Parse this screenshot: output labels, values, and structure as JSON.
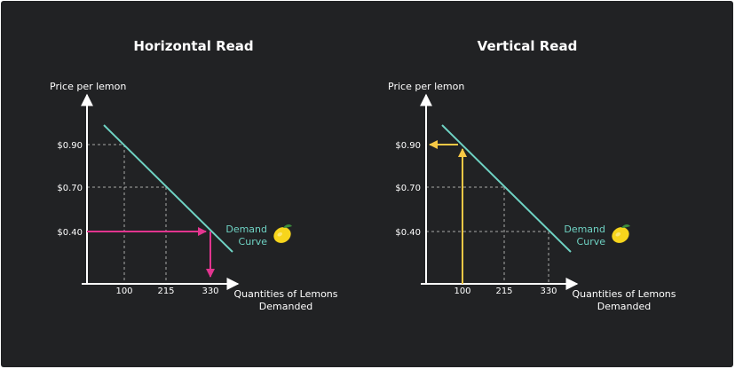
{
  "colors": {
    "background": "#212224",
    "axis": "#ffffff",
    "text": "#ffffff",
    "curve": "#6fd3c4",
    "grid": "#a9a9a9",
    "horizontal_arrow": "#e2358f",
    "vertical_arrow": "#f7c845",
    "lemon": "#f7d51c",
    "leaf": "#3c8c3c"
  },
  "icons": [
    "lemon-icon"
  ],
  "chart_data": [
    {
      "type": "line",
      "title": "Horizontal Read",
      "ylabel": "Price per lemon",
      "xlabel": "Quantities of Lemons Demanded",
      "xlabel_lines": [
        "Quantities of Lemons",
        "Demanded"
      ],
      "x_ticks": [
        "100",
        "215",
        "330"
      ],
      "y_ticks": [
        "$0.90",
        "$0.70",
        "$0.40"
      ],
      "series": [
        {
          "name": "Demand Curve",
          "label_lines": [
            "Demand",
            "Curve"
          ],
          "x": [
            100,
            215,
            330
          ],
          "y": [
            0.9,
            0.7,
            0.4
          ]
        }
      ],
      "guides": [
        {
          "x": 100,
          "y": 0.9
        },
        {
          "x": 215,
          "y": 0.7
        }
      ],
      "read": {
        "direction": "horizontal",
        "from_price": 0.4,
        "to_quantity": 330
      },
      "grid": "dashed guide lines to points"
    },
    {
      "type": "line",
      "title": "Vertical Read",
      "ylabel": "Price per lemon",
      "xlabel": "Quantities of Lemons Demanded",
      "xlabel_lines": [
        "Quantities of Lemons",
        "Demanded"
      ],
      "x_ticks": [
        "100",
        "215",
        "330"
      ],
      "y_ticks": [
        "$0.90",
        "$0.70",
        "$0.40"
      ],
      "series": [
        {
          "name": "Demand Curve",
          "label_lines": [
            "Demand",
            "Curve"
          ],
          "x": [
            100,
            215,
            330
          ],
          "y": [
            0.9,
            0.7,
            0.4
          ]
        }
      ],
      "guides": [
        {
          "x": 215,
          "y": 0.7
        },
        {
          "x": 330,
          "y": 0.4
        }
      ],
      "read": {
        "direction": "vertical",
        "from_quantity": 100,
        "to_price": 0.9
      },
      "grid": "dashed guide lines to points"
    }
  ]
}
